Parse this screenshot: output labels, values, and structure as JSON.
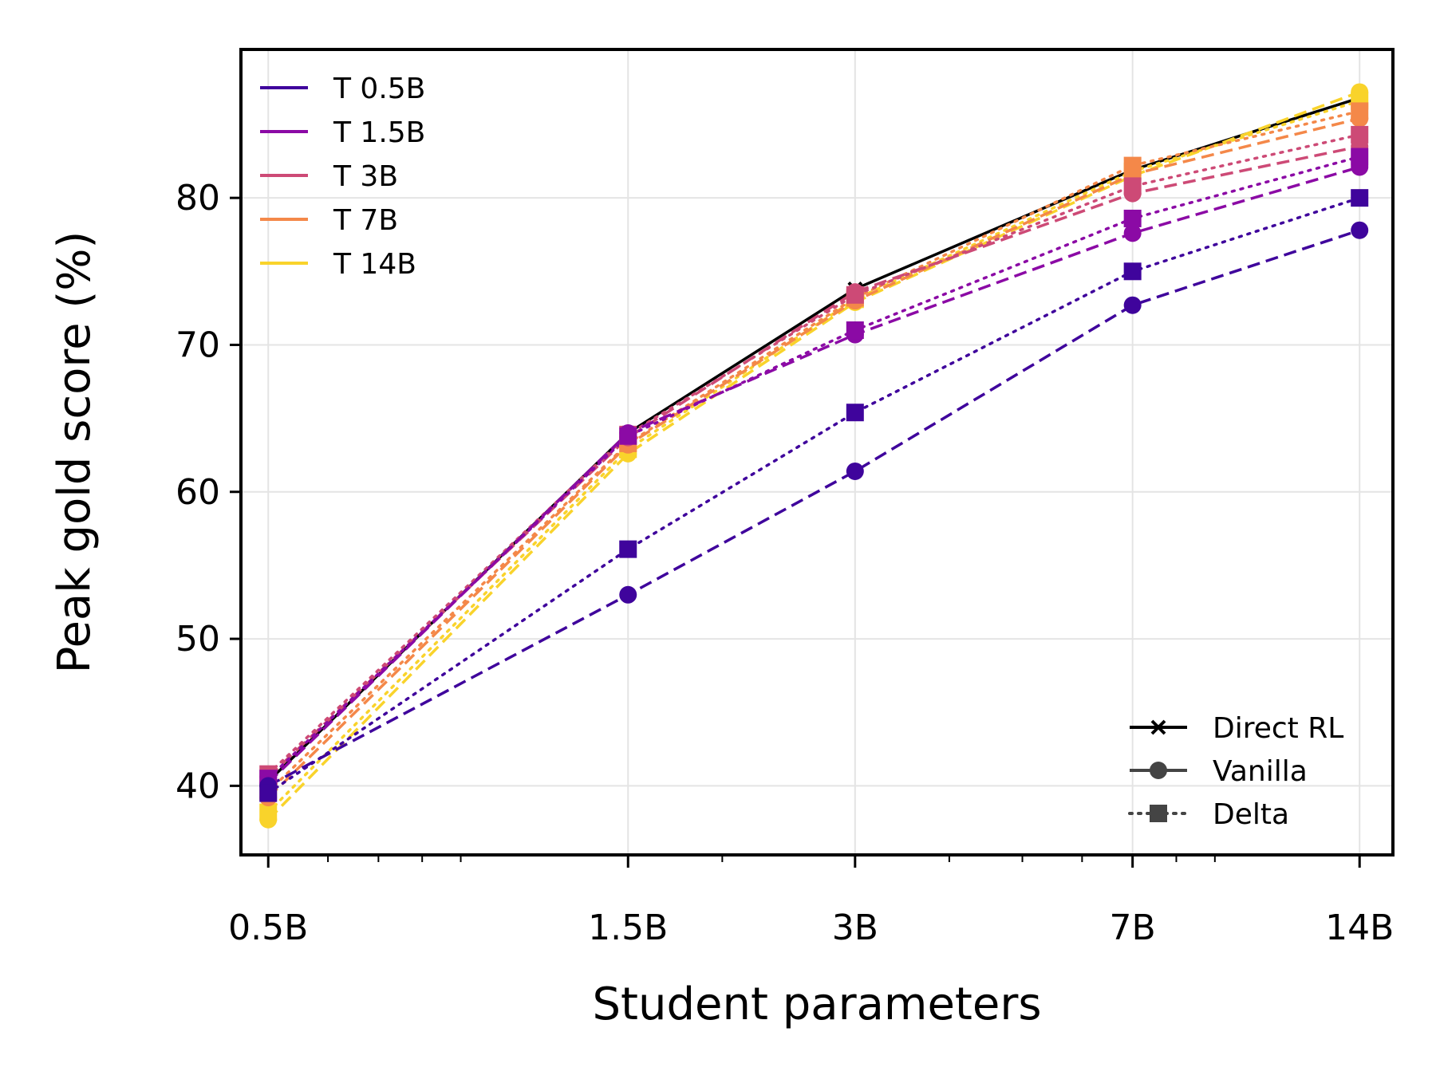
{
  "chart_data": {
    "type": "line",
    "title": "",
    "xlabel": "Student parameters",
    "ylabel": "Peak gold score (%)",
    "x_scale": "log",
    "x": [
      0.5,
      1.5,
      3,
      7,
      14
    ],
    "x_tick_labels": [
      "0.5B",
      "1.5B",
      "3B",
      "7B",
      "14B"
    ],
    "xlim": [
      0.46,
      15.5
    ],
    "ylim": [
      35.3,
      90.1
    ],
    "y_ticks": [
      40,
      50,
      60,
      70,
      80
    ],
    "grid": true,
    "direct_rl": {
      "name": "Direct RL",
      "color": "#000000",
      "values": [
        40.3,
        64.0,
        73.8,
        81.9,
        86.8
      ]
    },
    "series": [
      {
        "name": "T 0.5B",
        "color": "#3f049c",
        "vanilla": [
          40.0,
          53.0,
          61.4,
          72.7,
          77.8
        ],
        "delta": [
          39.5,
          56.1,
          65.4,
          75.0,
          80.0
        ]
      },
      {
        "name": "T 1.5B",
        "color": "#8b0aa5",
        "vanilla": [
          40.2,
          64.0,
          70.7,
          77.6,
          82.1
        ],
        "delta": [
          40.5,
          63.8,
          71.0,
          78.6,
          82.8
        ]
      },
      {
        "name": "T 3B",
        "color": "#cd4a76",
        "vanilla": [
          40.6,
          63.7,
          73.6,
          80.3,
          83.5
        ],
        "delta": [
          40.8,
          63.9,
          73.4,
          80.8,
          84.3
        ]
      },
      {
        "name": "T 7B",
        "color": "#f48849",
        "vanilla": [
          39.2,
          63.2,
          73.0,
          81.6,
          85.4
        ],
        "delta": [
          39.6,
          63.3,
          73.2,
          82.2,
          85.9
        ]
      },
      {
        "name": "T 14B",
        "color": "#f9d32b",
        "vanilla": [
          37.7,
          62.6,
          72.9,
          81.5,
          87.2
        ],
        "delta": [
          38.2,
          62.9,
          73.1,
          81.8,
          86.6
        ]
      }
    ],
    "legend_teachers": [
      "T 0.5B",
      "T 1.5B",
      "T 3B",
      "T 7B",
      "T 14B"
    ],
    "legend_teachers_position": "top-left",
    "legend_methods": [
      "Direct RL",
      "Vanilla",
      "Delta"
    ],
    "legend_methods_position": "bottom-right"
  }
}
